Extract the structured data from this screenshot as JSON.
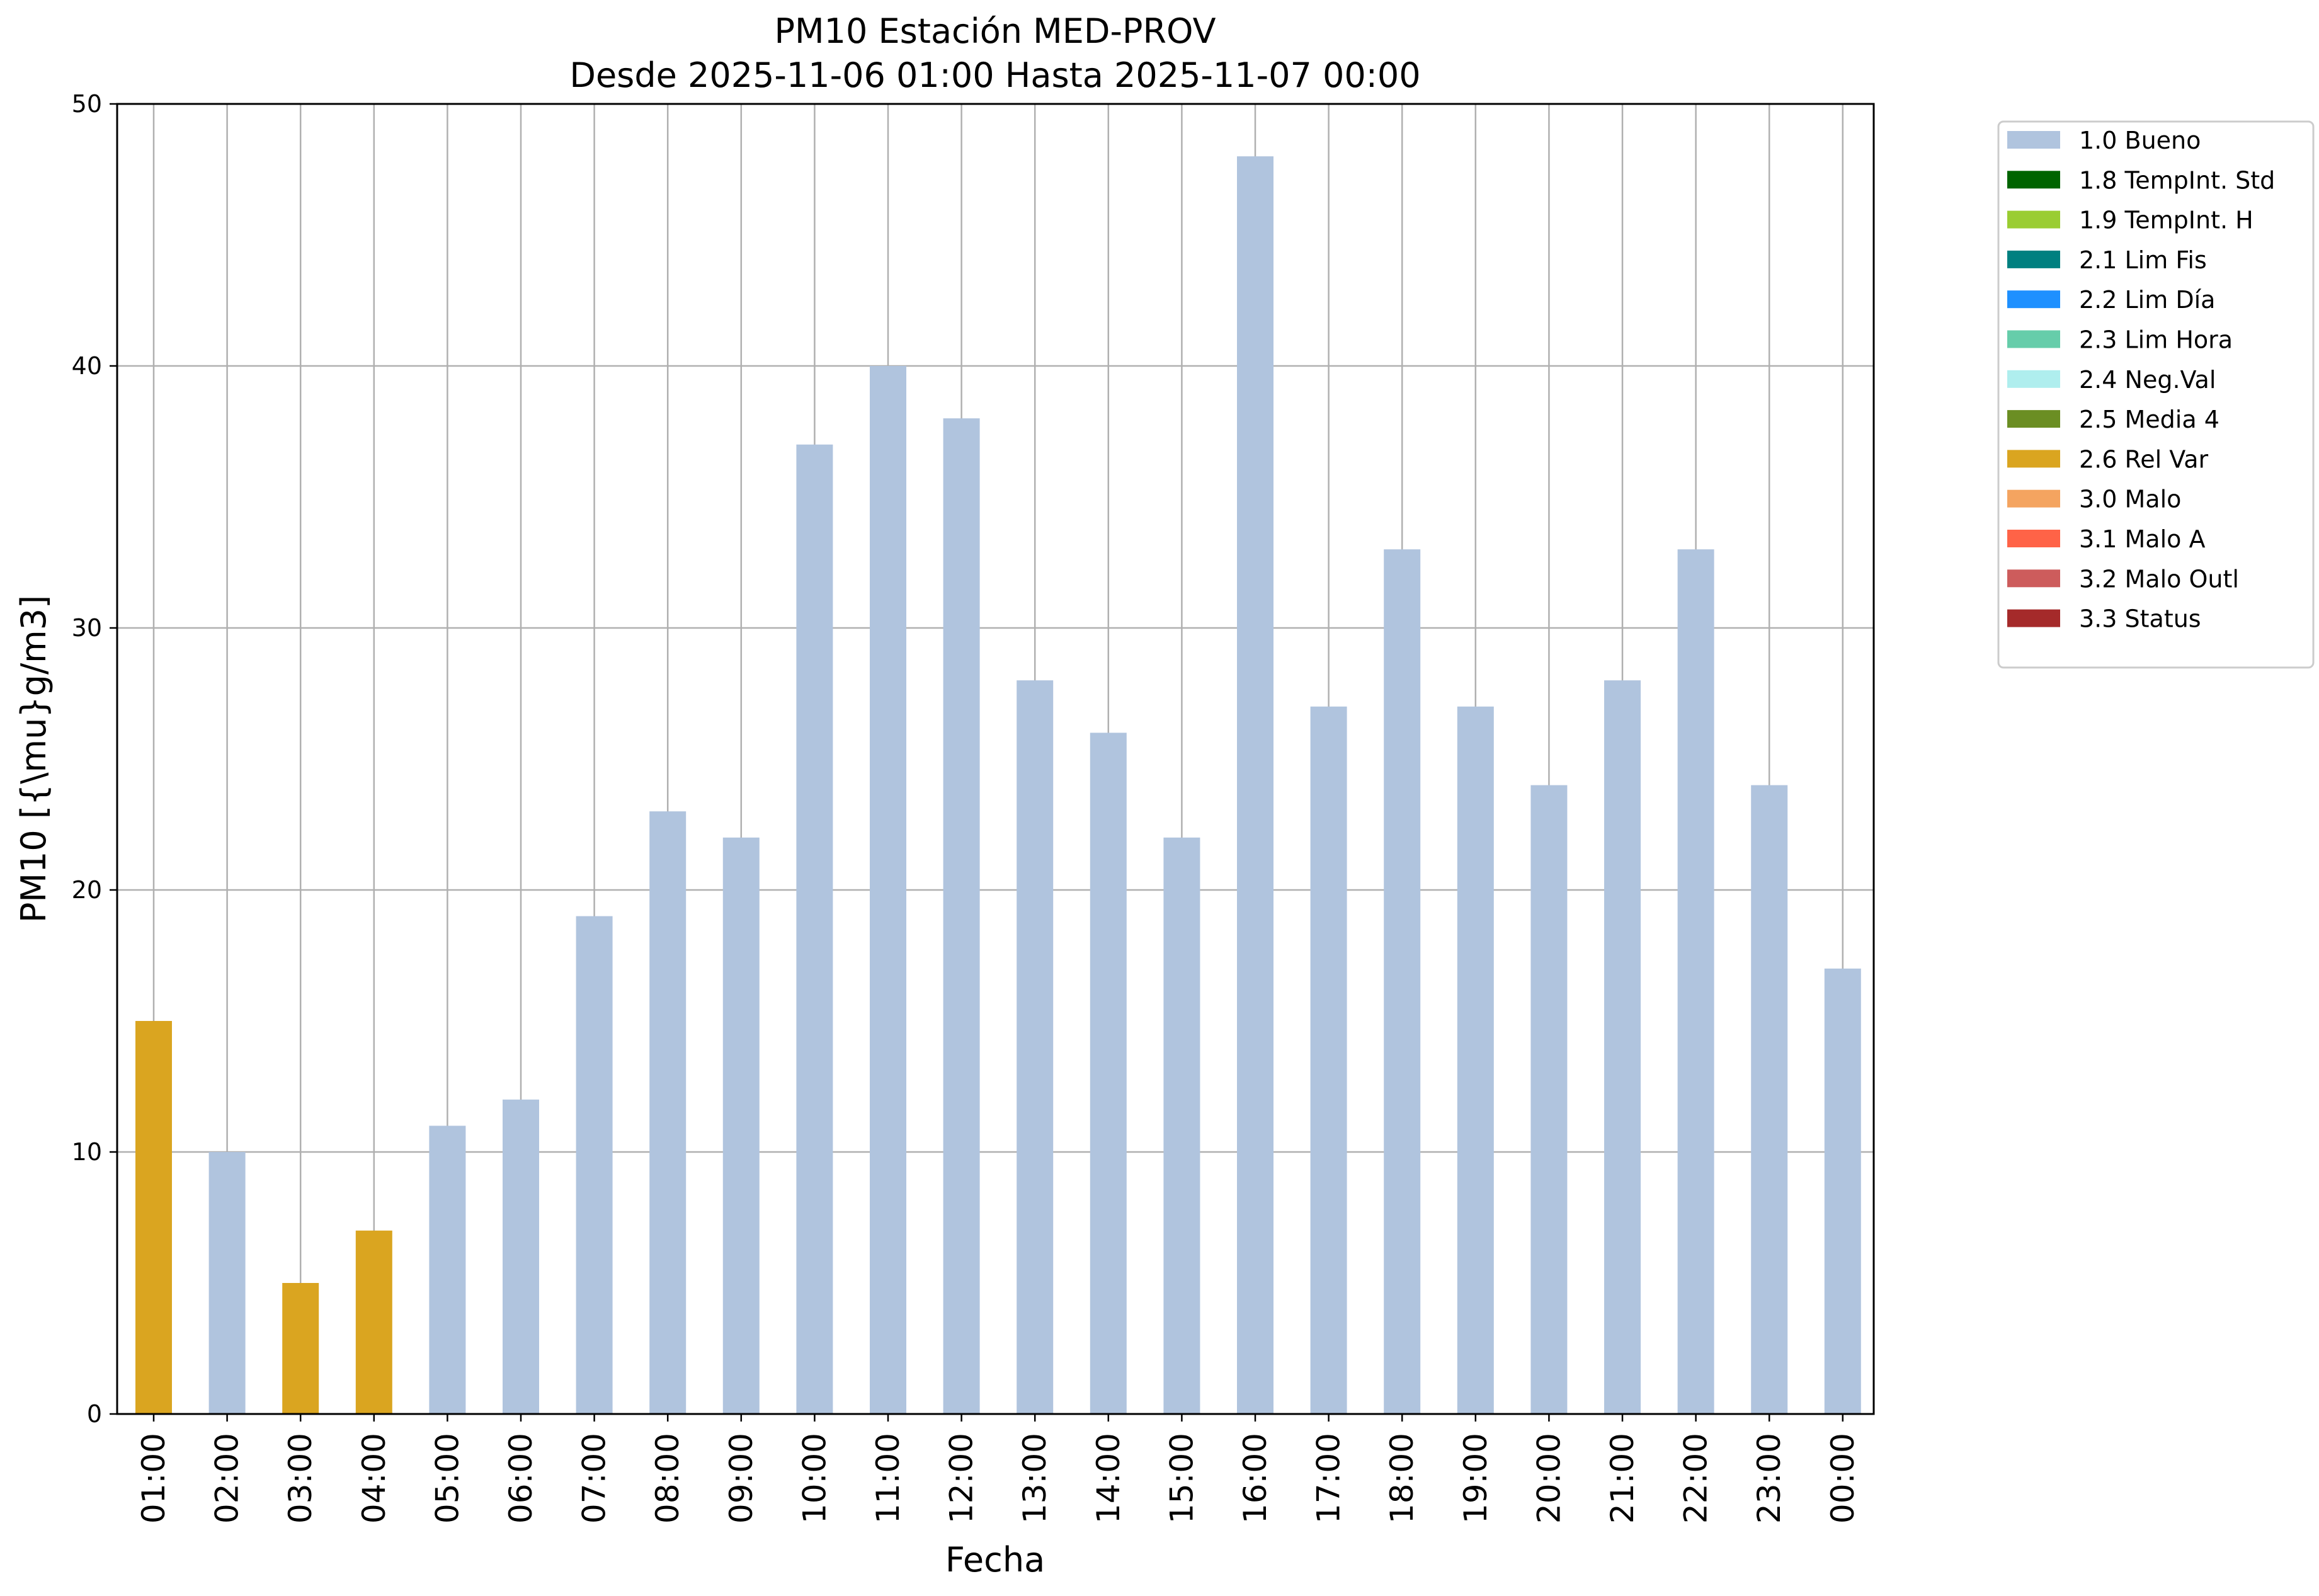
{
  "chart_data": {
    "type": "bar",
    "title": "PM10 Estación MED-PROV",
    "subtitle": "Desde 2025-11-06 01:00 Hasta 2025-11-07 00:00",
    "xlabel": "Fecha",
    "ylabel": "PM10 [{\\mu}g/m3]",
    "ylim": [
      0,
      50
    ],
    "yticks": [
      0,
      10,
      20,
      30,
      40,
      50
    ],
    "grid": true,
    "legend_position": "outside-top-right",
    "categories": [
      "01:00",
      "02:00",
      "03:00",
      "04:00",
      "05:00",
      "06:00",
      "07:00",
      "08:00",
      "09:00",
      "10:00",
      "11:00",
      "12:00",
      "13:00",
      "14:00",
      "15:00",
      "16:00",
      "17:00",
      "18:00",
      "19:00",
      "20:00",
      "21:00",
      "22:00",
      "23:00",
      "00:00"
    ],
    "series": [
      {
        "name": "1.0 Bueno",
        "color": "#b0c4de",
        "values": [
          0,
          10,
          0,
          0,
          11,
          12,
          19,
          23,
          22,
          37,
          40,
          38,
          28,
          26,
          22,
          48,
          27,
          33,
          27,
          24,
          28,
          33,
          24,
          17
        ]
      },
      {
        "name": "1.8 TempInt. Std",
        "color": "#006400",
        "values": [
          0,
          0,
          0,
          0,
          0,
          0,
          0,
          0,
          0,
          0,
          0,
          0,
          0,
          0,
          0,
          0,
          0,
          0,
          0,
          0,
          0,
          0,
          0,
          0
        ]
      },
      {
        "name": "1.9 TempInt. H",
        "color": "#9acd32",
        "values": [
          0,
          0,
          0,
          0,
          0,
          0,
          0,
          0,
          0,
          0,
          0,
          0,
          0,
          0,
          0,
          0,
          0,
          0,
          0,
          0,
          0,
          0,
          0,
          0
        ]
      },
      {
        "name": "2.1 Lim Fis",
        "color": "#008080",
        "values": [
          0,
          0,
          0,
          0,
          0,
          0,
          0,
          0,
          0,
          0,
          0,
          0,
          0,
          0,
          0,
          0,
          0,
          0,
          0,
          0,
          0,
          0,
          0,
          0
        ]
      },
      {
        "name": "2.2 Lim Día",
        "color": "#1e90ff",
        "values": [
          0,
          0,
          0,
          0,
          0,
          0,
          0,
          0,
          0,
          0,
          0,
          0,
          0,
          0,
          0,
          0,
          0,
          0,
          0,
          0,
          0,
          0,
          0,
          0
        ]
      },
      {
        "name": "2.3 Lim Hora",
        "color": "#66cdaa",
        "values": [
          0,
          0,
          0,
          0,
          0,
          0,
          0,
          0,
          0,
          0,
          0,
          0,
          0,
          0,
          0,
          0,
          0,
          0,
          0,
          0,
          0,
          0,
          0,
          0
        ]
      },
      {
        "name": "2.4 Neg.Val",
        "color": "#afeeee",
        "values": [
          0,
          0,
          0,
          0,
          0,
          0,
          0,
          0,
          0,
          0,
          0,
          0,
          0,
          0,
          0,
          0,
          0,
          0,
          0,
          0,
          0,
          0,
          0,
          0
        ]
      },
      {
        "name": "2.5 Media 4",
        "color": "#6b8e23",
        "values": [
          0,
          0,
          0,
          0,
          0,
          0,
          0,
          0,
          0,
          0,
          0,
          0,
          0,
          0,
          0,
          0,
          0,
          0,
          0,
          0,
          0,
          0,
          0,
          0
        ]
      },
      {
        "name": "2.6 Rel Var",
        "color": "#daa520",
        "values": [
          15,
          0,
          5,
          7,
          0,
          0,
          0,
          0,
          0,
          0,
          0,
          0,
          0,
          0,
          0,
          0,
          0,
          0,
          0,
          0,
          0,
          0,
          0,
          0
        ]
      },
      {
        "name": "3.0 Malo",
        "color": "#f4a460",
        "values": [
          0,
          0,
          0,
          0,
          0,
          0,
          0,
          0,
          0,
          0,
          0,
          0,
          0,
          0,
          0,
          0,
          0,
          0,
          0,
          0,
          0,
          0,
          0,
          0
        ]
      },
      {
        "name": "3.1 Malo A",
        "color": "#ff6347",
        "values": [
          0,
          0,
          0,
          0,
          0,
          0,
          0,
          0,
          0,
          0,
          0,
          0,
          0,
          0,
          0,
          0,
          0,
          0,
          0,
          0,
          0,
          0,
          0,
          0
        ]
      },
      {
        "name": "3.2 Malo Outl",
        "color": "#cd5c5c",
        "values": [
          0,
          0,
          0,
          0,
          0,
          0,
          0,
          0,
          0,
          0,
          0,
          0,
          0,
          0,
          0,
          0,
          0,
          0,
          0,
          0,
          0,
          0,
          0,
          0
        ]
      },
      {
        "name": "3.3 Status",
        "color": "#a52a2a",
        "values": [
          0,
          0,
          0,
          0,
          0,
          0,
          0,
          0,
          0,
          0,
          0,
          0,
          0,
          0,
          0,
          0,
          0,
          0,
          0,
          0,
          0,
          0,
          0,
          0
        ]
      }
    ]
  }
}
